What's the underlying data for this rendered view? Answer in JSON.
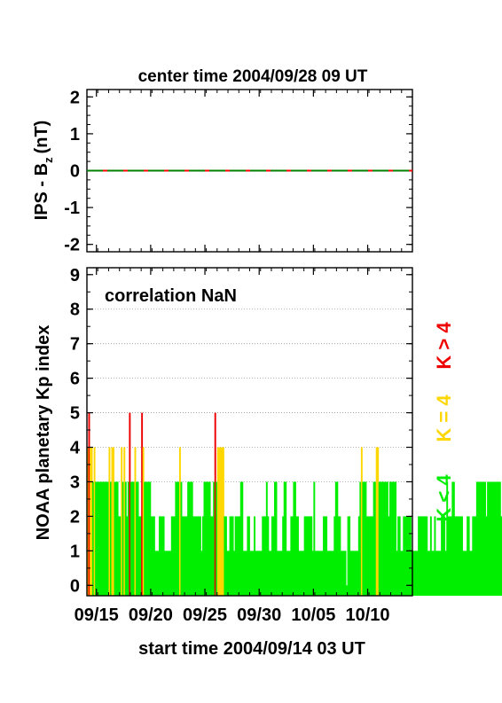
{
  "chart_data": [
    {
      "type": "line",
      "title": "center time 2004/09/28 09 UT",
      "ylabel_main": "IPS - B",
      "ylabel_sub": "z",
      "ylabel_unit": "(nT)",
      "ylim": [
        -2.2,
        2.2
      ],
      "yticks": [
        "2",
        "1",
        "0",
        "-1",
        "-2"
      ],
      "series": [
        {
          "color": "#008000",
          "x_start_day": 0,
          "x_end_day": 30,
          "values_constant": 0
        },
        {
          "color": "#ff0000",
          "x_start_day": 0,
          "x_end_day": 30,
          "values_constant": 0
        }
      ]
    },
    {
      "type": "bar",
      "annotation": "correlation NaN",
      "ylabel": "NOAA planetary Kp index",
      "xlabel": "start time 2004/09/14 03 UT",
      "ylim": [
        -0.3,
        9.2
      ],
      "yticks": [
        "0",
        "1",
        "2",
        "3",
        "4",
        "5",
        "6",
        "7",
        "8",
        "9"
      ],
      "gridlines_at": [
        3,
        4,
        5,
        6,
        7,
        8
      ],
      "xlim_days": [
        0,
        30
      ],
      "xticks": [
        {
          "label": "09/15",
          "day": 0.875
        },
        {
          "label": "09/20",
          "day": 5.875
        },
        {
          "label": "09/25",
          "day": 10.875
        },
        {
          "label": "09/30",
          "day": 15.875
        },
        {
          "label": "10/05",
          "day": 20.875
        },
        {
          "label": "10/10",
          "day": 25.875
        }
      ],
      "legend": [
        {
          "label": "K < 4",
          "color": "#00ee00"
        },
        {
          "label": "K = 4",
          "color": "#ffd700"
        },
        {
          "label": "K > 4",
          "color": "#ee0000"
        }
      ],
      "interval_hours": 3,
      "kp_values": [
        4,
        5,
        4,
        4,
        3,
        4,
        3,
        3,
        3,
        3,
        3,
        3,
        3,
        3,
        3,
        3,
        4,
        3,
        4,
        4,
        3,
        3,
        3,
        2,
        2,
        4,
        3,
        4,
        3,
        2,
        3,
        5,
        3,
        3,
        3,
        4,
        3,
        3,
        2,
        2,
        5,
        4,
        3,
        3,
        3,
        3,
        3,
        2,
        2,
        2,
        1,
        1,
        1,
        2,
        2,
        2,
        2,
        1,
        1,
        1,
        1,
        1,
        2,
        2,
        2,
        3,
        3,
        3,
        4,
        3,
        2,
        2,
        2,
        2,
        3,
        3,
        3,
        3,
        2,
        2,
        2,
        2,
        2,
        2,
        1,
        2,
        3,
        3,
        3,
        3,
        3,
        2,
        2,
        3,
        5,
        3,
        4,
        4,
        4,
        4,
        4,
        2,
        2,
        1,
        1,
        2,
        2,
        2,
        1,
        2,
        2,
        2,
        2,
        3,
        3,
        1,
        1,
        1,
        2,
        2,
        1,
        1,
        1,
        2,
        1,
        1,
        1,
        1,
        1,
        2,
        2,
        2,
        3,
        2,
        1,
        1,
        2,
        2,
        3,
        3,
        1,
        1,
        1,
        1,
        2,
        3,
        3,
        1,
        1,
        1,
        2,
        2,
        3,
        3,
        2,
        2,
        1,
        1,
        1,
        1,
        2,
        2,
        2,
        2,
        2,
        2,
        1,
        3,
        1,
        1,
        1,
        1,
        1,
        1,
        2,
        2,
        2,
        1,
        1,
        1,
        1,
        1,
        2,
        3,
        3,
        2,
        2,
        1,
        1,
        1,
        1,
        0,
        2,
        2,
        1,
        1,
        1,
        1,
        1,
        1,
        2,
        3,
        4,
        3,
        3,
        3,
        2,
        2,
        2,
        2,
        2,
        3,
        3,
        4,
        4,
        3,
        3,
        3,
        3,
        3,
        3,
        3,
        2,
        3,
        3,
        3,
        3,
        3,
        1,
        2,
        2,
        1,
        1,
        2,
        2,
        2,
        2,
        2,
        2,
        1,
        1,
        1,
        1,
        1,
        2,
        2,
        2,
        2,
        2,
        2,
        2,
        1,
        1,
        2,
        1,
        1,
        2,
        1,
        1,
        1,
        1,
        2,
        2,
        2,
        1,
        3,
        2,
        2,
        2,
        3,
        3,
        2,
        2,
        2,
        2,
        2,
        2,
        1,
        1,
        1,
        2,
        2,
        1,
        1,
        2,
        2,
        2,
        3,
        3,
        3,
        3,
        3,
        3,
        3,
        2,
        3,
        3,
        3,
        3,
        3,
        3,
        3,
        3,
        3,
        3,
        2,
        2,
        2,
        3,
        3,
        3,
        3,
        3,
        3,
        3,
        3,
        3,
        3,
        3,
        3
      ]
    }
  ]
}
